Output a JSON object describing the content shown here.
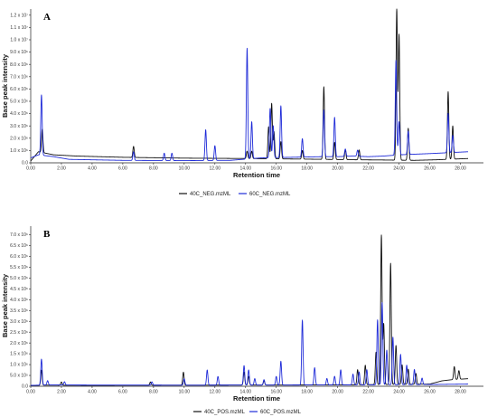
{
  "chart_data": [
    {
      "type": "line",
      "panel_label": "A",
      "xlabel": "Retention time",
      "ylabel": "Base peak intensity",
      "xlim": [
        0,
        29.5
      ],
      "ylim": [
        0,
        12500000
      ],
      "x_ticks": [
        "0.00",
        "2.00",
        "4.00",
        "6.00",
        "8.00",
        "10.00",
        "12.00",
        "14.00",
        "16.00",
        "18.00",
        "20.00",
        "22.00",
        "24.00",
        "26.00",
        "28.00"
      ],
      "y_ticks": [
        {
          "value": 0,
          "label": "0.0"
        },
        {
          "value": 1000000,
          "label": "1.0 x 10⁶"
        },
        {
          "value": 2000000,
          "label": "2.0 x 10⁶"
        },
        {
          "value": 3000000,
          "label": "3.0 x 10⁶"
        },
        {
          "value": 4000000,
          "label": "4.0 x 10⁶"
        },
        {
          "value": 5000000,
          "label": "5.0 x 10⁶"
        },
        {
          "value": 6000000,
          "label": "6.0 x 10⁶"
        },
        {
          "value": 7000000,
          "label": "7.0 x 10⁶"
        },
        {
          "value": 8000000,
          "label": "8.0 x 10⁶"
        },
        {
          "value": 9000000,
          "label": "9.0 x 10⁶"
        },
        {
          "value": 10000000,
          "label": "1.0 x 10⁷"
        },
        {
          "value": 11000000,
          "label": "1.1 x 10⁷"
        },
        {
          "value": 12000000,
          "label": "1.2 x 10⁷"
        }
      ],
      "legend_position": "bottom-center",
      "series": [
        {
          "name": "40C_NEG.mzML",
          "color": "#111111",
          "x_end": 28.5,
          "baseline": [
            [
              0,
              150000
            ],
            [
              0.5,
              900000
            ],
            [
              1.5,
              650000
            ],
            [
              3,
              550000
            ],
            [
              6,
              450000
            ],
            [
              10,
              380000
            ],
            [
              14,
              350000
            ],
            [
              18,
              300000
            ],
            [
              21,
              250000
            ],
            [
              23,
              230000
            ],
            [
              25,
              200000
            ],
            [
              26.5,
              250000
            ],
            [
              28.5,
              350000
            ]
          ],
          "peaks": [
            [
              0.75,
              1900000
            ],
            [
              6.7,
              900000
            ],
            [
              14.1,
              600000
            ],
            [
              14.4,
              600000
            ],
            [
              15.5,
              2600000
            ],
            [
              15.7,
              4500000
            ],
            [
              15.85,
              2200000
            ],
            [
              16.3,
              1400000
            ],
            [
              17.7,
              700000
            ],
            [
              19.1,
              5900000
            ],
            [
              19.8,
              1400000
            ],
            [
              20.5,
              800000
            ],
            [
              21.4,
              800000
            ],
            [
              23.85,
              12300000
            ],
            [
              24.0,
              10200000
            ],
            [
              24.6,
              2600000
            ],
            [
              27.2,
              5500000
            ],
            [
              27.5,
              2700000
            ]
          ]
        },
        {
          "name": "60C_NEG.mzML",
          "color": "#1f2bd8",
          "x_end": 28.5,
          "baseline": [
            [
              0,
              400000
            ],
            [
              0.5,
              650000
            ],
            [
              1.5,
              500000
            ],
            [
              2.5,
              280000
            ],
            [
              6,
              200000
            ],
            [
              10,
              180000
            ],
            [
              13,
              200000
            ],
            [
              14,
              300000
            ],
            [
              15,
              400000
            ],
            [
              17,
              450000
            ],
            [
              19,
              500000
            ],
            [
              20,
              500000
            ],
            [
              21,
              550000
            ],
            [
              22,
              500000
            ],
            [
              23,
              550000
            ],
            [
              24,
              650000
            ],
            [
              25,
              700000
            ],
            [
              26,
              750000
            ],
            [
              28.5,
              900000
            ]
          ],
          "peaks": [
            [
              0.7,
              4900000
            ],
            [
              6.7,
              700000
            ],
            [
              8.7,
              600000
            ],
            [
              9.2,
              600000
            ],
            [
              11.4,
              2500000
            ],
            [
              12.0,
              1200000
            ],
            [
              14.1,
              9000000
            ],
            [
              14.4,
              3000000
            ],
            [
              15.6,
              4000000
            ],
            [
              15.8,
              2600000
            ],
            [
              16.3,
              4200000
            ],
            [
              17.7,
              1500000
            ],
            [
              19.1,
              3800000
            ],
            [
              19.8,
              3200000
            ],
            [
              20.5,
              600000
            ],
            [
              21.3,
              500000
            ],
            [
              23.8,
              7700000
            ],
            [
              24.0,
              2700000
            ],
            [
              24.6,
              1900000
            ],
            [
              27.2,
              3200000
            ],
            [
              27.5,
              1400000
            ]
          ]
        }
      ]
    },
    {
      "type": "line",
      "panel_label": "B",
      "xlabel": "Retention time",
      "ylabel": "Base peak intensity",
      "xlim": [
        0,
        29.5
      ],
      "ylim": [
        0,
        7400000
      ],
      "x_ticks": [
        "0.00",
        "2.00",
        "4.00",
        "6.00",
        "8.00",
        "10.00",
        "12.00",
        "14.00",
        "16.00",
        "18.00",
        "20.00",
        "22.00",
        "24.00",
        "26.00",
        "28.00"
      ],
      "y_ticks": [
        {
          "value": 0,
          "label": "0.0"
        },
        {
          "value": 500000,
          "label": "5.0 x 10⁵"
        },
        {
          "value": 1000000,
          "label": "1.0 x 10⁶"
        },
        {
          "value": 1500000,
          "label": "1.5 x 10⁶"
        },
        {
          "value": 2000000,
          "label": "2.0 x 10⁶"
        },
        {
          "value": 2500000,
          "label": "2.5 x 10⁶"
        },
        {
          "value": 3000000,
          "label": "3.0 x 10⁶"
        },
        {
          "value": 3500000,
          "label": "3.5 x 10⁶"
        },
        {
          "value": 4000000,
          "label": "4.0 x 10⁶"
        },
        {
          "value": 4500000,
          "label": "4.5 x 10⁶"
        },
        {
          "value": 5000000,
          "label": "5.0 x 10⁶"
        },
        {
          "value": 5500000,
          "label": "5.5 x 10⁶"
        },
        {
          "value": 6000000,
          "label": "6.0 x 10⁶"
        },
        {
          "value": 6500000,
          "label": "6.5 x 10⁶"
        },
        {
          "value": 7000000,
          "label": "7.0 x 10⁶"
        }
      ],
      "legend_position": "bottom-center",
      "series": [
        {
          "name": "40C_POS.mzML",
          "color": "#111111",
          "x_end": 28.5,
          "baseline": [
            [
              0,
              30000
            ],
            [
              1,
              50000
            ],
            [
              4,
              40000
            ],
            [
              10,
              50000
            ],
            [
              20,
              60000
            ],
            [
              26,
              100000
            ],
            [
              26.8,
              250000
            ],
            [
              27.4,
              300000
            ],
            [
              28.5,
              350000
            ]
          ],
          "peaks": [
            [
              0.7,
              700000
            ],
            [
              2.0,
              150000
            ],
            [
              7.8,
              150000
            ],
            [
              9.95,
              600000
            ],
            [
              13.9,
              600000
            ],
            [
              14.2,
              400000
            ],
            [
              15.2,
              200000
            ],
            [
              21.3,
              700000
            ],
            [
              21.8,
              900000
            ],
            [
              22.5,
              1500000
            ],
            [
              22.85,
              6900000
            ],
            [
              23.0,
              2800000
            ],
            [
              23.45,
              5600000
            ],
            [
              23.8,
              1800000
            ],
            [
              24.2,
              900000
            ],
            [
              24.6,
              700000
            ],
            [
              25.1,
              500000
            ],
            [
              27.6,
              600000
            ],
            [
              27.9,
              400000
            ]
          ]
        },
        {
          "name": "60C_POS.mzML",
          "color": "#1f2bd8",
          "x_end": 28.5,
          "baseline": [
            [
              0,
              40000
            ],
            [
              1,
              60000
            ],
            [
              10,
              50000
            ],
            [
              20,
              60000
            ],
            [
              26,
              80000
            ],
            [
              28.5,
              100000
            ]
          ],
          "peaks": [
            [
              0.7,
              1200000
            ],
            [
              1.1,
              200000
            ],
            [
              2.2,
              150000
            ],
            [
              7.9,
              150000
            ],
            [
              10.0,
              300000
            ],
            [
              11.5,
              700000
            ],
            [
              12.2,
              400000
            ],
            [
              13.9,
              900000
            ],
            [
              14.2,
              700000
            ],
            [
              14.6,
              300000
            ],
            [
              15.2,
              250000
            ],
            [
              16.0,
              400000
            ],
            [
              16.3,
              1100000
            ],
            [
              17.7,
              3000000
            ],
            [
              18.5,
              800000
            ],
            [
              19.3,
              300000
            ],
            [
              19.8,
              400000
            ],
            [
              20.2,
              700000
            ],
            [
              21.0,
              500000
            ],
            [
              21.4,
              600000
            ],
            [
              21.9,
              700000
            ],
            [
              22.6,
              3000000
            ],
            [
              22.9,
              3800000
            ],
            [
              23.2,
              1600000
            ],
            [
              23.6,
              2200000
            ],
            [
              24.1,
              1400000
            ],
            [
              24.5,
              900000
            ],
            [
              25.0,
              700000
            ],
            [
              25.5,
              300000
            ]
          ]
        }
      ]
    }
  ]
}
